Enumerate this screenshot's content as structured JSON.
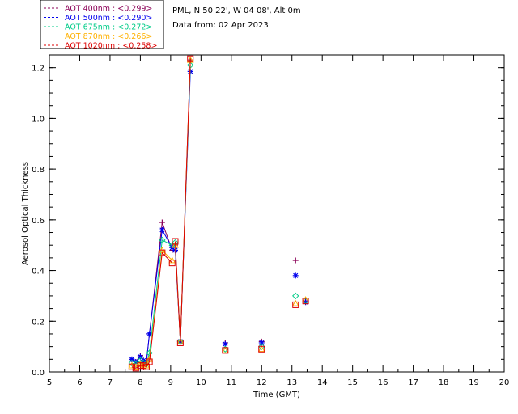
{
  "chart_data": {
    "type": "scatter",
    "title_lines": [
      "PML, N 50 22', W 04 08', Alt 0m",
      "Data from: 02 Apr 2023"
    ],
    "xlabel": "Time (GMT)",
    "ylabel": "Aerosol Optical Thickness",
    "xlim": [
      5,
      20
    ],
    "ylim": [
      0,
      1.25
    ],
    "x_ticks": [
      "5",
      "6",
      "7",
      "8",
      "9",
      "10",
      "11",
      "12",
      "13",
      "14",
      "15",
      "16",
      "17",
      "18",
      "19",
      "20"
    ],
    "y_ticks": [
      "0.0",
      "0.2",
      "0.4",
      "0.6",
      "0.8",
      "1.0",
      "1.2"
    ],
    "grid": false,
    "legend_position": "top-left",
    "series": [
      {
        "name": "AOT  400nm : <0.299>",
        "color": "#8b0057",
        "marker": "plus",
        "line_segments": [
          [
            0,
            7
          ],
          [
            8,
            10
          ]
        ],
        "x": [
          7.72,
          7.85,
          8.0,
          8.1,
          8.2,
          8.3,
          8.72,
          9.05,
          9.15,
          9.32,
          9.65,
          10.8,
          12.0,
          13.12,
          13.45
        ],
        "y": [
          0.05,
          0.04,
          0.065,
          0.045,
          0.04,
          0.15,
          0.59,
          0.48,
          0.5,
          0.12,
          1.23,
          0.115,
          0.12,
          0.44,
          0.28
        ]
      },
      {
        "name": "AOT  500nm : <0.290>",
        "color": "#0000ee",
        "marker": "asterisk",
        "line_segments": [
          [
            0,
            7
          ],
          [
            8,
            10
          ]
        ],
        "x": [
          7.72,
          7.85,
          8.0,
          8.1,
          8.2,
          8.3,
          8.72,
          9.05,
          9.15,
          9.32,
          9.65,
          10.8,
          12.0,
          13.12,
          13.45
        ],
        "y": [
          0.05,
          0.04,
          0.06,
          0.045,
          0.04,
          0.15,
          0.56,
          0.49,
          0.48,
          0.12,
          1.185,
          0.11,
          0.115,
          0.38,
          0.275
        ]
      },
      {
        "name": "AOT  675nm : <0.272>",
        "color": "#00cc88",
        "marker": "diamond",
        "line_segments": [
          [
            0,
            7
          ],
          [
            8,
            10
          ]
        ],
        "x": [
          7.72,
          7.85,
          8.0,
          8.1,
          8.2,
          8.3,
          8.72,
          9.05,
          9.15,
          9.32,
          9.65,
          10.8,
          12.0,
          13.12,
          13.45
        ],
        "y": [
          0.035,
          0.03,
          0.045,
          0.035,
          0.03,
          0.075,
          0.52,
          0.5,
          0.51,
          0.12,
          1.21,
          0.09,
          0.1,
          0.3,
          0.28
        ]
      },
      {
        "name": "AOT  870nm : <0.266>",
        "color": "#ffb000",
        "marker": "triangle",
        "line_segments": [
          [
            0,
            7
          ],
          [
            8,
            10
          ]
        ],
        "x": [
          7.72,
          7.85,
          8.0,
          8.1,
          8.2,
          8.3,
          8.72,
          9.05,
          9.15,
          9.32,
          9.65,
          10.8,
          12.0,
          13.12,
          13.45
        ],
        "y": [
          0.025,
          0.02,
          0.03,
          0.025,
          0.025,
          0.05,
          0.48,
          0.44,
          0.5,
          0.12,
          1.23,
          0.085,
          0.09,
          0.27,
          0.285
        ]
      },
      {
        "name": "AOT 1020nm : <0.258>",
        "color": "#dd0000",
        "marker": "square",
        "line_segments": [
          [
            0,
            7
          ],
          [
            8,
            10
          ]
        ],
        "x": [
          7.72,
          7.85,
          8.0,
          8.1,
          8.2,
          8.3,
          8.72,
          9.05,
          9.15,
          9.32,
          9.65,
          10.8,
          12.0,
          13.12,
          13.45
        ],
        "y": [
          0.02,
          0.015,
          0.025,
          0.025,
          0.02,
          0.04,
          0.47,
          0.43,
          0.515,
          0.115,
          1.235,
          0.085,
          0.09,
          0.265,
          0.28
        ]
      }
    ]
  }
}
